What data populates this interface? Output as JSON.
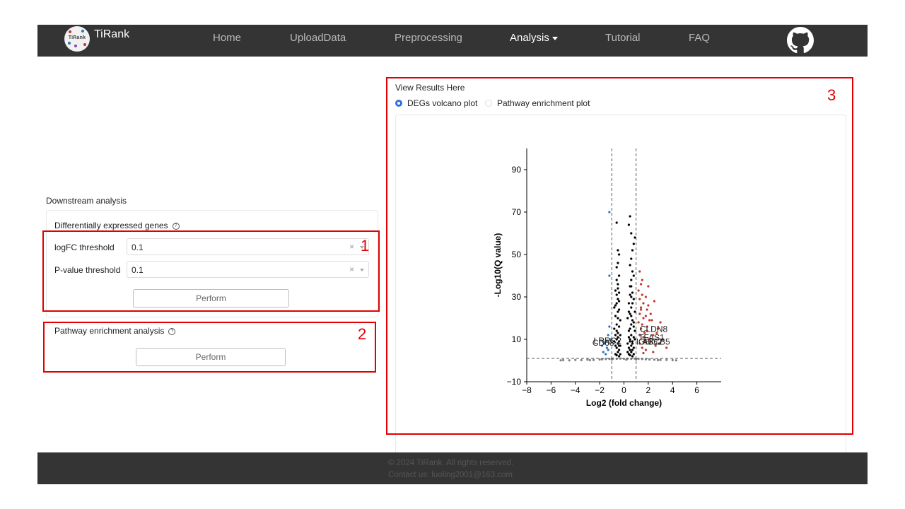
{
  "brand": {
    "name": "TiRank",
    "logo_text": "TiRank"
  },
  "nav": {
    "home": "Home",
    "upload": "UploadData",
    "preprocessing": "Preprocessing",
    "analysis": "Analysis",
    "tutorial": "Tutorial",
    "faq": "FAQ",
    "github_icon": "github-icon"
  },
  "left": {
    "section_title": "Downstream analysis",
    "deg": {
      "title": "Differentially expressed genes",
      "logfc_label": "logFC threshold",
      "logfc_value": "0.1",
      "pvalue_label": "P-value threshold",
      "pvalue_value": "0.1",
      "perform": "Perform",
      "clear_glyph": "×"
    },
    "pathway": {
      "title": "Pathway enrichment analysis",
      "perform": "Perform"
    }
  },
  "right": {
    "title": "View Results Here",
    "radio_volcano": "DEGs volcano plot",
    "radio_pathway": "Pathway enrichment plot",
    "selected": "DEGs volcano plot"
  },
  "annotations": {
    "box1": "1",
    "box2": "2",
    "box3": "3"
  },
  "chart_data": {
    "type": "scatter",
    "xlabel": "Log2 (fold change)",
    "ylabel": "-Log10(Q value)",
    "xlim": [
      -8,
      8
    ],
    "ylim": [
      -10,
      100
    ],
    "xticks": [
      -8,
      -6,
      -4,
      -2,
      0,
      2,
      4,
      6
    ],
    "yticks": [
      -10,
      10,
      30,
      50,
      70,
      90
    ],
    "tick_labels_x": [
      "−8",
      "−6",
      "−4",
      "−2",
      "0",
      "2",
      "4",
      "6"
    ],
    "tick_labels_y": [
      "−10",
      "10",
      "30",
      "50",
      "70",
      "90"
    ],
    "vlines": [
      -1,
      1
    ],
    "hline": 1,
    "colors": {
      "up": "#c0392b",
      "down": "#2e75b6",
      "ns": "#000000",
      "low": "#808080",
      "guide": "#555555"
    },
    "gene_labels": [
      "CLDN8",
      "TFAS1",
      "ABCB5",
      "IGHG2",
      "LRRC2",
      "CD68"
    ],
    "series": [
      {
        "name": "up",
        "points": [
          [
            1.3,
            42
          ],
          [
            1.5,
            38
          ],
          [
            2.0,
            35
          ],
          [
            1.8,
            30
          ],
          [
            2.5,
            28
          ],
          [
            1.4,
            25
          ],
          [
            2.2,
            22
          ],
          [
            1.6,
            20
          ],
          [
            3.0,
            18
          ],
          [
            2.8,
            15
          ],
          [
            1.9,
            14
          ],
          [
            2.4,
            12
          ],
          [
            3.2,
            10
          ],
          [
            1.7,
            9
          ],
          [
            2.1,
            8
          ],
          [
            2.6,
            7
          ],
          [
            1.5,
            6
          ],
          [
            1.2,
            33
          ],
          [
            1.3,
            29
          ],
          [
            1.6,
            27
          ],
          [
            2.0,
            26
          ],
          [
            1.4,
            24
          ],
          [
            1.8,
            21
          ],
          [
            2.3,
            19
          ],
          [
            1.5,
            17
          ],
          [
            1.9,
            16
          ],
          [
            2.7,
            13
          ],
          [
            1.3,
            12
          ],
          [
            1.6,
            11
          ],
          [
            2.0,
            10
          ],
          [
            3.5,
            6
          ],
          [
            2.9,
            8
          ],
          [
            1.2,
            18
          ],
          [
            1.4,
            15
          ],
          [
            1.7,
            13
          ],
          [
            2.2,
            9
          ],
          [
            1.3,
            8
          ],
          [
            1.8,
            5
          ],
          [
            2.4,
            4
          ],
          [
            1.6,
            3.5
          ],
          [
            1.4,
            36
          ],
          [
            1.5,
            31
          ],
          [
            1.9,
            24
          ],
          [
            2.1,
            19
          ],
          [
            1.3,
            22
          ]
        ]
      },
      {
        "name": "down",
        "points": [
          [
            -1.2,
            70
          ],
          [
            -1.3,
            12
          ],
          [
            -1.5,
            9
          ],
          [
            -1.6,
            8
          ],
          [
            -1.4,
            6
          ],
          [
            -1.2,
            16
          ],
          [
            -1.8,
            7
          ],
          [
            -1.3,
            5
          ],
          [
            -1.7,
            4
          ],
          [
            -1.1,
            10
          ],
          [
            -1.5,
            3
          ],
          [
            -1.2,
            40
          ]
        ]
      },
      {
        "name": "ns",
        "points": [
          [
            -0.6,
            65
          ],
          [
            0.5,
            68
          ],
          [
            0.4,
            64
          ],
          [
            0.6,
            60
          ],
          [
            0.8,
            55
          ],
          [
            0.7,
            52
          ],
          [
            -0.5,
            52
          ],
          [
            -0.4,
            50
          ],
          [
            -0.5,
            46
          ],
          [
            -0.6,
            44
          ],
          [
            0.9,
            58
          ],
          [
            0.6,
            48
          ],
          [
            0.5,
            45
          ],
          [
            0.7,
            42
          ],
          [
            0.8,
            40
          ],
          [
            0.6,
            38
          ],
          [
            -0.4,
            40
          ],
          [
            -0.6,
            38
          ],
          [
            -0.5,
            36
          ],
          [
            -0.7,
            33
          ],
          [
            -0.4,
            32
          ],
          [
            0.5,
            35
          ],
          [
            0.7,
            32
          ],
          [
            0.6,
            30
          ],
          [
            0.8,
            29
          ],
          [
            -0.5,
            29
          ],
          [
            -0.6,
            27
          ],
          [
            -0.8,
            25
          ],
          [
            -0.4,
            24
          ],
          [
            0.4,
            27
          ],
          [
            0.6,
            25
          ],
          [
            0.9,
            23
          ],
          [
            0.5,
            22
          ],
          [
            -0.7,
            21
          ],
          [
            -0.5,
            20
          ],
          [
            -0.3,
            19
          ],
          [
            0.3,
            20
          ],
          [
            0.7,
            19
          ],
          [
            0.8,
            18
          ],
          [
            0.6,
            17
          ],
          [
            -0.6,
            17
          ],
          [
            -0.4,
            16
          ],
          [
            -0.8,
            15
          ],
          [
            0.5,
            15
          ],
          [
            0.4,
            14
          ],
          [
            0.9,
            14
          ],
          [
            -0.5,
            13
          ],
          [
            -0.7,
            12
          ],
          [
            -0.3,
            12
          ],
          [
            0.6,
            12
          ],
          [
            0.8,
            11
          ],
          [
            0.4,
            11
          ],
          [
            -0.6,
            10
          ],
          [
            -0.4,
            9
          ],
          [
            -0.8,
            9
          ],
          [
            0.5,
            9
          ],
          [
            0.7,
            9
          ],
          [
            0.3,
            8
          ],
          [
            -0.5,
            8
          ],
          [
            -0.3,
            7
          ],
          [
            -0.7,
            7
          ],
          [
            0.6,
            7
          ],
          [
            0.4,
            6
          ],
          [
            0.8,
            6
          ],
          [
            -0.6,
            6
          ],
          [
            -0.4,
            5
          ],
          [
            0.5,
            5
          ],
          [
            0.7,
            5
          ],
          [
            -0.5,
            4
          ],
          [
            0.3,
            4
          ],
          [
            0.6,
            4
          ],
          [
            -0.3,
            3
          ],
          [
            -0.7,
            3
          ],
          [
            0.4,
            3
          ],
          [
            0.8,
            3
          ],
          [
            -0.6,
            2.5
          ],
          [
            0.5,
            2.5
          ],
          [
            -0.4,
            2
          ],
          [
            0.7,
            2
          ],
          [
            0.6,
            35
          ],
          [
            0.5,
            31
          ],
          [
            0.7,
            27
          ],
          [
            -0.5,
            34
          ],
          [
            -0.6,
            31
          ],
          [
            -0.4,
            28
          ],
          [
            -0.7,
            26
          ],
          [
            -0.5,
            23
          ],
          [
            0.4,
            23
          ],
          [
            0.6,
            21
          ],
          [
            0.8,
            16
          ],
          [
            -0.6,
            14
          ],
          [
            -0.5,
            11
          ],
          [
            0.9,
            10
          ],
          [
            0.5,
            10
          ],
          [
            -0.4,
            7
          ],
          [
            0.7,
            8
          ]
        ]
      },
      {
        "name": "low",
        "points": [
          [
            -5,
            0.2
          ],
          [
            -4.5,
            0.1
          ],
          [
            -4,
            0.3
          ],
          [
            -3.5,
            0.2
          ],
          [
            -3,
            0.4
          ],
          [
            -2.5,
            0.3
          ],
          [
            -2,
            0.5
          ],
          [
            -1.8,
            0.6
          ],
          [
            -1.5,
            0.7
          ],
          [
            -1.2,
            0.8
          ],
          [
            -0.9,
            0.9
          ],
          [
            -0.6,
            0.8
          ],
          [
            -0.3,
            0.9
          ],
          [
            0,
            0.8
          ],
          [
            0.3,
            0.9
          ],
          [
            0.6,
            0.8
          ],
          [
            0.9,
            0.9
          ],
          [
            1.2,
            0.8
          ],
          [
            1.5,
            0.7
          ],
          [
            1.8,
            0.6
          ],
          [
            2.1,
            0.5
          ],
          [
            2.5,
            0.4
          ],
          [
            3,
            0.3
          ],
          [
            3.5,
            0.3
          ],
          [
            4,
            0.2
          ],
          [
            4.3,
            0.1
          ],
          [
            -5.2,
            0.1
          ],
          [
            -2.8,
            0.2
          ],
          [
            2.8,
            0.2
          ],
          [
            -1.0,
            0.5
          ],
          [
            1.0,
            0.5
          ],
          [
            0.2,
            0.4
          ]
        ]
      }
    ]
  }
}
